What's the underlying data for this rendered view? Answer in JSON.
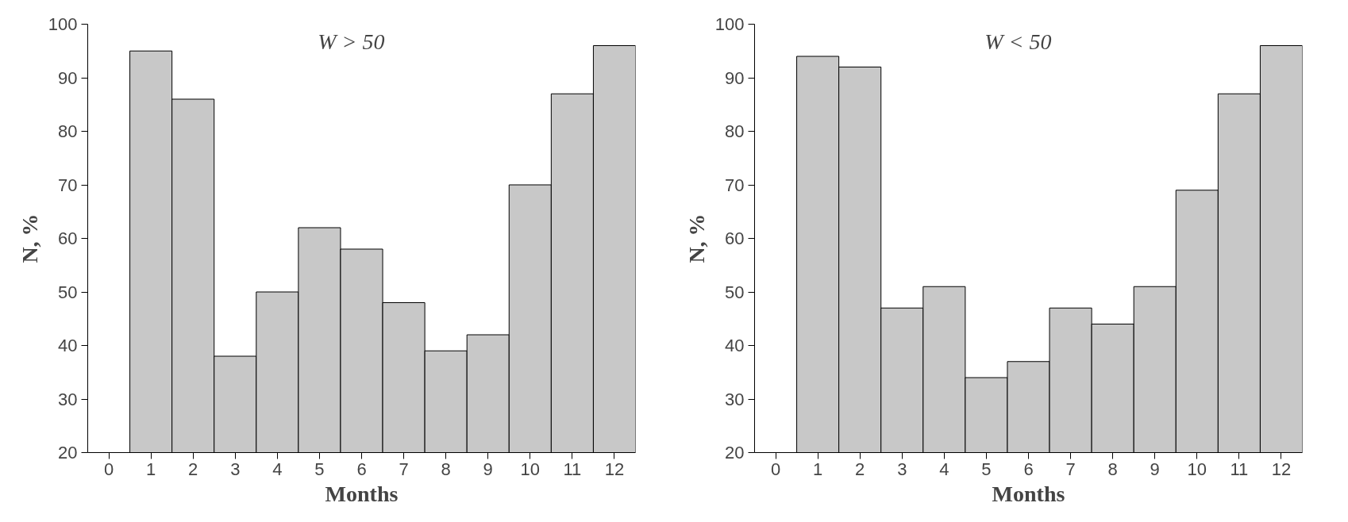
{
  "chart_data": [
    {
      "type": "bar",
      "annotations": [
        "W > 50"
      ],
      "xlabel": "Months",
      "ylabel": "N, %",
      "x": [
        1,
        2,
        3,
        4,
        5,
        6,
        7,
        8,
        9,
        10,
        11,
        12
      ],
      "series": [
        {
          "color": "#c8c8c8",
          "values": [
            95,
            86,
            38,
            50,
            62,
            58,
            48,
            39,
            42,
            70,
            87,
            96
          ]
        }
      ],
      "xlim": [
        -0.5,
        12.5
      ],
      "xticks": [
        0,
        1,
        2,
        3,
        4,
        5,
        6,
        7,
        8,
        9,
        10,
        11,
        12
      ],
      "ylim": [
        20,
        100
      ],
      "yticks": [
        20,
        30,
        40,
        50,
        60,
        70,
        80,
        90,
        100
      ],
      "grid": false
    },
    {
      "type": "bar",
      "annotations": [
        "W < 50"
      ],
      "xlabel": "Months",
      "ylabel": "N, %",
      "x": [
        1,
        2,
        3,
        4,
        5,
        6,
        7,
        8,
        9,
        10,
        11,
        12
      ],
      "series": [
        {
          "color": "#c8c8c8",
          "values": [
            94,
            92,
            47,
            51,
            34,
            37,
            47,
            44,
            51,
            69,
            87,
            96
          ]
        }
      ],
      "xlim": [
        -0.5,
        12.5
      ],
      "xticks": [
        0,
        1,
        2,
        3,
        4,
        5,
        6,
        7,
        8,
        9,
        10,
        11,
        12
      ],
      "ylim": [
        20,
        100
      ],
      "yticks": [
        20,
        30,
        40,
        50,
        60,
        70,
        80,
        90,
        100
      ],
      "grid": false
    }
  ]
}
